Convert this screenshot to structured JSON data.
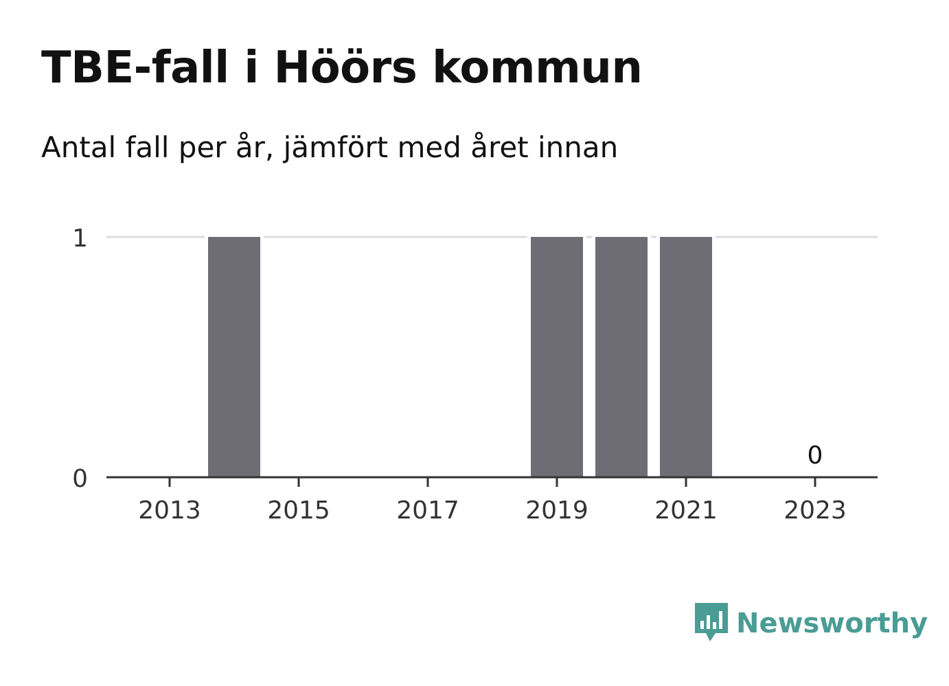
{
  "title": "TBE-fall i Höörs kommun",
  "subtitle": "Antal fall per år, jämfört med året innan",
  "brand": {
    "name": "Newsworthy",
    "icon": "newsworthy-logo-icon",
    "color": "#4a9c94"
  },
  "chart_data": {
    "type": "bar",
    "title": "TBE-fall i Höörs kommun",
    "subtitle": "Antal fall per år, jämfört med året innan",
    "categories": [
      2013,
      2014,
      2015,
      2016,
      2017,
      2018,
      2019,
      2020,
      2021,
      2022,
      2023
    ],
    "values": [
      0,
      1,
      0,
      0,
      0,
      0,
      1,
      1,
      1,
      0,
      0
    ],
    "xticks": [
      "2013",
      "2015",
      "2017",
      "2019",
      "2021",
      "2023"
    ],
    "yticks": [
      "0",
      "1"
    ],
    "ylim": [
      0,
      1
    ],
    "annotations": [
      {
        "category": 2023,
        "text": "0"
      }
    ],
    "bar_color": "#6e6d75",
    "grid": true,
    "grid_color": "#dddddd",
    "axis_color": "#333333"
  }
}
